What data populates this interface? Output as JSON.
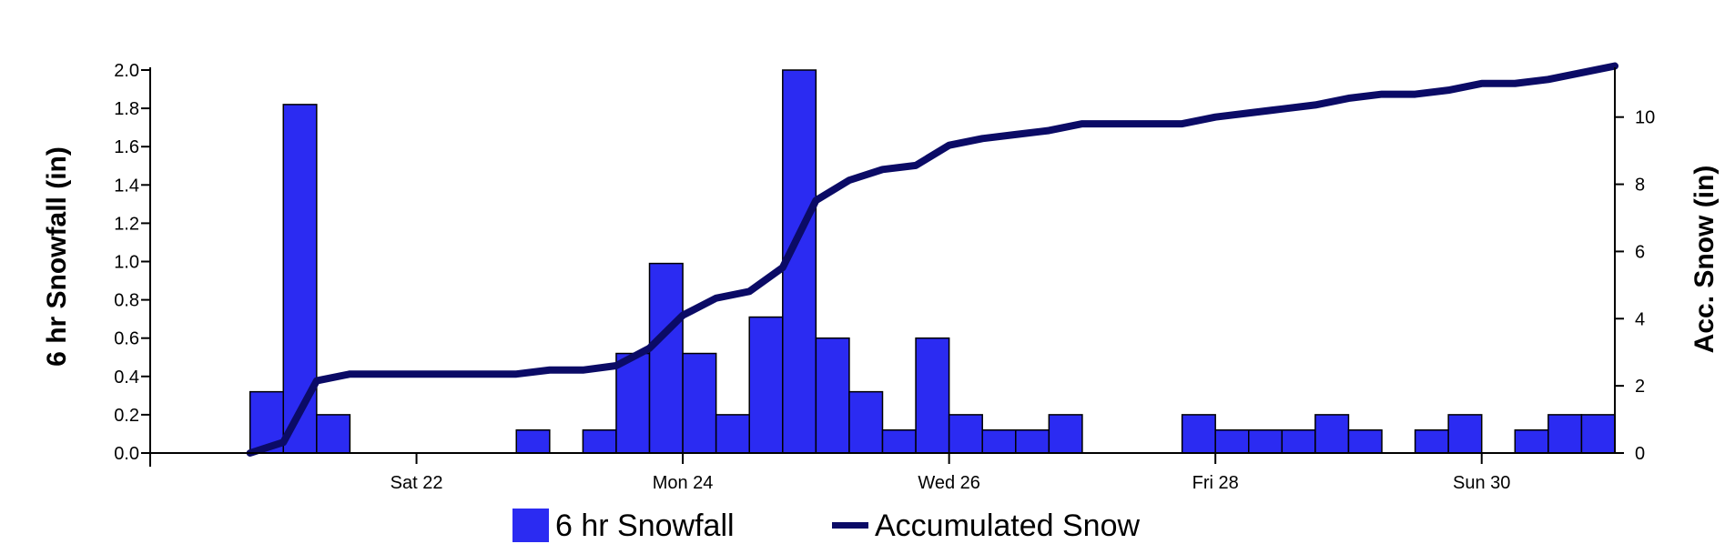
{
  "chart_data": {
    "type": "bar",
    "y_left": {
      "label": "6 hr Snowfall (in)",
      "ylim": [
        0,
        2.0
      ],
      "ticks": [
        "0.0",
        "0.2",
        "0.4",
        "0.6",
        "0.8",
        "1.0",
        "1.2",
        "1.4",
        "1.6",
        "1.8",
        "2.0"
      ]
    },
    "y_right": {
      "label": "Acc. Snow (in)",
      "ylim": [
        0,
        11.4
      ],
      "ticks": [
        "0",
        "2",
        "4",
        "6",
        "8",
        "10"
      ]
    },
    "x_axis": {
      "range_slots": [
        0,
        44
      ],
      "labels": [
        {
          "text": "Sat 22",
          "slot": 8
        },
        {
          "text": "Mon 24",
          "slot": 16
        },
        {
          "text": "Wed 26",
          "slot": 24
        },
        {
          "text": "Fri 28",
          "slot": 32
        },
        {
          "text": "Sun 30",
          "slot": 40
        }
      ]
    },
    "series": [
      {
        "name": "6 hr Snowfall",
        "type": "bar",
        "color": "#2b2bf2",
        "values": [
          0,
          0,
          0,
          0.32,
          1.82,
          0.2,
          0,
          0,
          0,
          0,
          0,
          0.12,
          0,
          0.12,
          0.52,
          0.99,
          0.52,
          0.2,
          0.71,
          2.0,
          0.6,
          0.32,
          0.12,
          0.6,
          0.2,
          0.12,
          0.12,
          0.2,
          0,
          0,
          0,
          0.2,
          0.12,
          0.12,
          0.12,
          0.2,
          0.12,
          0,
          0.12,
          0.2,
          0,
          0.12,
          0.2,
          0.2
        ]
      },
      {
        "name": "Accumulated Snow",
        "type": "line",
        "color": "#0b0b66",
        "points": [
          [
            3,
            0
          ],
          [
            4,
            0.32
          ],
          [
            5,
            2.15
          ],
          [
            6,
            2.35
          ],
          [
            7,
            2.35
          ],
          [
            8,
            2.35
          ],
          [
            9,
            2.35
          ],
          [
            10,
            2.35
          ],
          [
            11,
            2.35
          ],
          [
            12,
            2.47
          ],
          [
            13,
            2.47
          ],
          [
            14,
            2.6
          ],
          [
            15,
            3.12
          ],
          [
            16,
            4.1
          ],
          [
            17,
            4.61
          ],
          [
            18,
            4.81
          ],
          [
            19,
            5.52
          ],
          [
            20,
            7.52
          ],
          [
            21,
            8.12
          ],
          [
            22,
            8.44
          ],
          [
            23,
            8.56
          ],
          [
            24,
            9.16
          ],
          [
            25,
            9.36
          ],
          [
            26,
            9.48
          ],
          [
            27,
            9.6
          ],
          [
            28,
            9.8
          ],
          [
            29,
            9.8
          ],
          [
            30,
            9.8
          ],
          [
            31,
            9.8
          ],
          [
            32,
            10.0
          ],
          [
            33,
            10.12
          ],
          [
            34,
            10.24
          ],
          [
            35,
            10.36
          ],
          [
            36,
            10.56
          ],
          [
            37,
            10.68
          ],
          [
            38,
            10.68
          ],
          [
            39,
            10.8
          ],
          [
            40,
            11.0
          ],
          [
            41,
            11.0
          ],
          [
            42,
            11.12
          ],
          [
            43,
            11.32
          ],
          [
            44,
            11.52
          ]
        ]
      }
    ],
    "legend": {
      "position": "bottom",
      "items": [
        "6 hr Snowfall",
        "Accumulated Snow"
      ]
    },
    "grid": false
  }
}
